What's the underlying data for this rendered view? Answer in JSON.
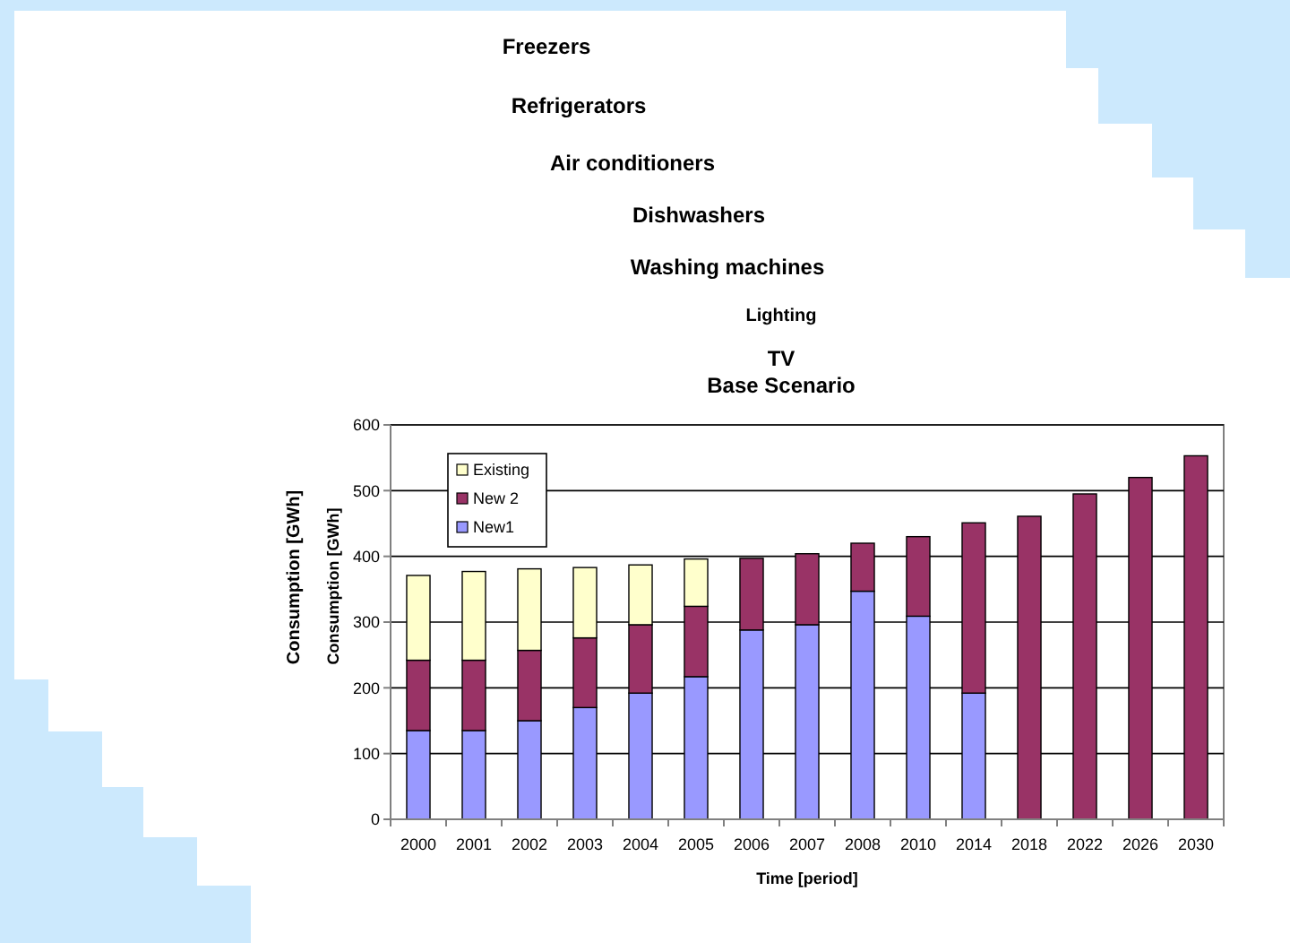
{
  "chart_data": {
    "type": "bar",
    "title": "TV",
    "subtitle": "Base Scenario",
    "xlabel": "Time [period]",
    "ylabel": "Consumption [GWh]",
    "annotations": [
      "Freezers",
      "Refrigerators",
      "Air conditioners",
      "Dishwashers",
      "Washing machines",
      "Lighting",
      "Consumption [GWh]"
    ],
    "categories": [
      "2000",
      "2001",
      "2002",
      "2003",
      "2004",
      "2005",
      "2006",
      "2007",
      "2008",
      "2010",
      "2014",
      "2018",
      "2022",
      "2026",
      "2030"
    ],
    "stacked": true,
    "series": [
      {
        "name": "New1",
        "color": "#9999ff",
        "values": [
          135,
          135,
          150,
          170,
          192,
          217,
          288,
          296,
          347,
          309,
          192,
          null,
          null,
          null,
          null
        ]
      },
      {
        "name": "New 2",
        "color": "#993366",
        "values": [
          107,
          107,
          107,
          106,
          104,
          107,
          109,
          108,
          73,
          121,
          259,
          461,
          495,
          520,
          553
        ]
      },
      {
        "name": "Existing",
        "color": "#ffffcc",
        "values": [
          129,
          135,
          124,
          107,
          91,
          72,
          null,
          null,
          null,
          null,
          null,
          null,
          null,
          null,
          null
        ]
      }
    ],
    "ylim": [
      0,
      600
    ],
    "yticks": [
      0,
      100,
      200,
      300,
      400,
      500,
      600
    ],
    "grid": "y",
    "legend": "top left"
  }
}
